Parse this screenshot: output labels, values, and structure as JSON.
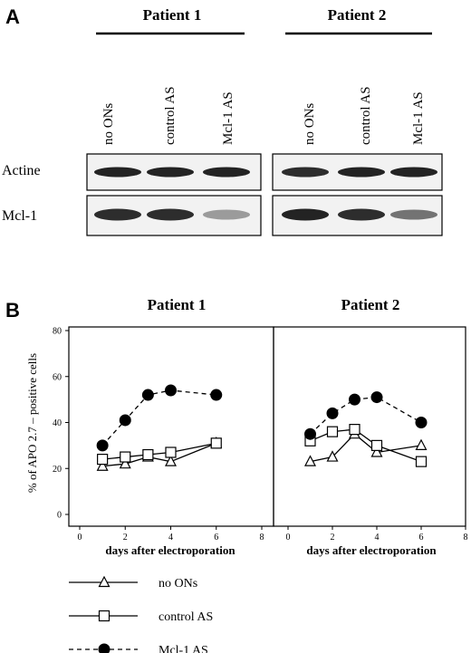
{
  "panel_a": {
    "label": "A",
    "patients": [
      "Patient 1",
      "Patient 2"
    ],
    "lanes": [
      "no ONs",
      "control AS",
      "Mcl-1 AS"
    ],
    "rows": [
      "Actine",
      "Mcl-1"
    ],
    "band_intensity": {
      "Actine": {
        "Patient 1": [
          1.0,
          1.0,
          1.0
        ],
        "Patient 2": [
          0.95,
          1.0,
          1.0
        ]
      },
      "Mcl-1": {
        "Patient 1": [
          0.95,
          0.95,
          0.4
        ],
        "Patient 2": [
          1.0,
          0.95,
          0.6
        ]
      }
    }
  },
  "panel_b": {
    "label": "B",
    "ylabel": "% of APO 2.7 – positive cells"
  },
  "chart_data": [
    {
      "type": "line",
      "title": "Patient 1",
      "xlabel": "days after electroporation",
      "ylabel": "% of APO 2.7 – positive cells",
      "xlim": [
        0,
        8
      ],
      "ylim": [
        0,
        80
      ],
      "xticks": [
        "0",
        "2",
        "4",
        "6",
        "8"
      ],
      "yticks": [
        "0",
        "20",
        "40",
        "60",
        "80"
      ],
      "grid": false,
      "series": [
        {
          "name": "no ONs",
          "x": [
            1,
            2,
            3,
            4,
            6
          ],
          "y": [
            21,
            22,
            25,
            23,
            31
          ]
        },
        {
          "name": "control AS",
          "x": [
            1,
            2,
            3,
            4,
            6
          ],
          "y": [
            24,
            25,
            26,
            27,
            31
          ]
        },
        {
          "name": "Mcl-1 AS",
          "x": [
            1,
            2,
            3,
            4,
            6
          ],
          "y": [
            30,
            41,
            52,
            54,
            52
          ]
        }
      ]
    },
    {
      "type": "line",
      "title": "Patient 2",
      "xlabel": "days after electroporation",
      "xlim": [
        0,
        8
      ],
      "ylim": [
        0,
        80
      ],
      "xticks": [
        "0",
        "2",
        "4",
        "6",
        "8"
      ],
      "grid": false,
      "series": [
        {
          "name": "no ONs",
          "x": [
            1,
            2,
            3,
            4,
            6
          ],
          "y": [
            23,
            25,
            35,
            27,
            30
          ]
        },
        {
          "name": "control AS",
          "x": [
            1,
            2,
            3,
            4,
            6
          ],
          "y": [
            32,
            36,
            37,
            30,
            23
          ]
        },
        {
          "name": "Mcl-1 AS",
          "x": [
            1,
            2,
            3,
            4,
            6
          ],
          "y": [
            35,
            44,
            50,
            51,
            40
          ]
        }
      ]
    }
  ],
  "legend": [
    {
      "name": "no ONs",
      "marker": "triangle",
      "line": "solid"
    },
    {
      "name": "control AS",
      "marker": "square",
      "line": "solid"
    },
    {
      "name": "Mcl-1 AS",
      "marker": "circle",
      "line": "dashed"
    }
  ]
}
